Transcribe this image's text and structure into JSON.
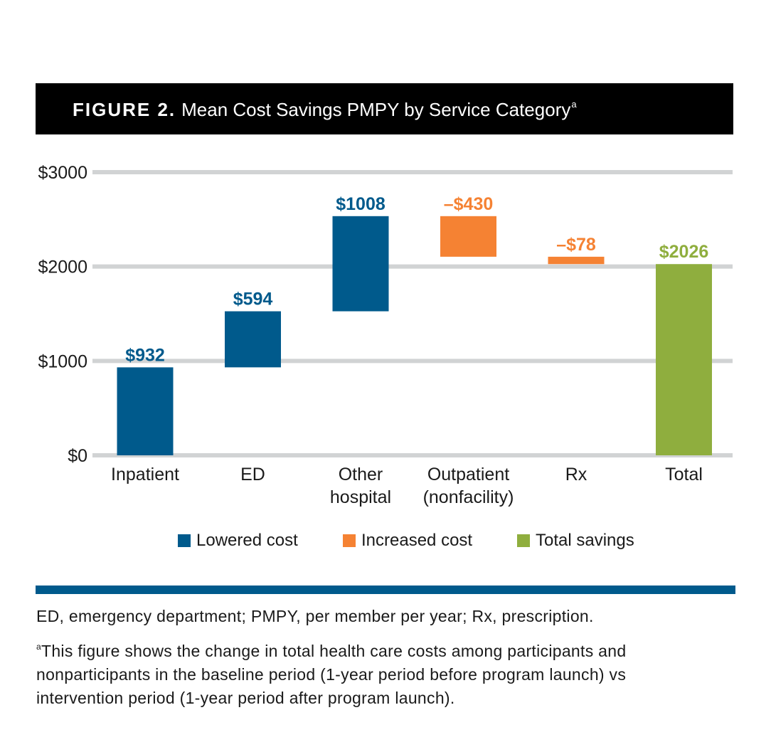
{
  "figure": {
    "label": "FIGURE 2.",
    "title": "Mean Cost Savings PMPY by Service Category",
    "title_sup": "a"
  },
  "chart_data": {
    "type": "bar",
    "subtype": "waterfall",
    "categories": [
      "Inpatient",
      "ED",
      "Other hospital",
      "Outpatient (nonfacility)",
      "Rx",
      "Total"
    ],
    "category_lines": [
      [
        "Inpatient"
      ],
      [
        "ED"
      ],
      [
        "Other",
        "hospital"
      ],
      [
        "Outpatient",
        "(nonfacility)"
      ],
      [
        "Rx"
      ],
      [
        "Total"
      ]
    ],
    "values": [
      932,
      594,
      1008,
      -430,
      -78,
      2026
    ],
    "bars": [
      {
        "category": "Inpatient",
        "start": 0,
        "end": 932,
        "kind": "lowered"
      },
      {
        "category": "ED",
        "start": 932,
        "end": 1526,
        "kind": "lowered"
      },
      {
        "category": "Other hospital",
        "start": 1526,
        "end": 2534,
        "kind": "lowered"
      },
      {
        "category": "Outpatient (nonfacility)",
        "start": 2104,
        "end": 2534,
        "kind": "increased"
      },
      {
        "category": "Rx",
        "start": 2026,
        "end": 2104,
        "kind": "increased"
      },
      {
        "category": "Total",
        "start": 0,
        "end": 2026,
        "kind": "total"
      }
    ],
    "data_labels": [
      "$932",
      "$594",
      "$1008",
      "–$430",
      "–$78",
      "$2026"
    ],
    "y_ticks": [
      0,
      1000,
      2000,
      3000
    ],
    "y_tick_labels": [
      "$0",
      "$1000",
      "$2000",
      "$3000"
    ],
    "ylim": [
      0,
      3000
    ],
    "grid": true,
    "legend_position": "bottom",
    "xlabel": "",
    "ylabel": ""
  },
  "legend": [
    {
      "label": "Lowered cost",
      "kind": "lowered"
    },
    {
      "label": "Increased cost",
      "kind": "increased"
    },
    {
      "label": "Total savings",
      "kind": "total"
    }
  ],
  "colors": {
    "lowered": "#005a8c",
    "increased": "#f58233",
    "total": "#8fae3e",
    "grid": "#d1d3d4",
    "header_bg": "#000000",
    "rule": "#005a8c"
  },
  "footnotes": {
    "abbreviations": "ED, emergency department; PMPY, per member per year; Rx, prescription.",
    "note_marker": "a",
    "note_lines": [
      "This figure shows the change in total health care costs among participants and",
      "nonparticipants in the baseline period (1-year period before program launch) vs",
      "intervention period (1-year period after program launch)."
    ]
  }
}
